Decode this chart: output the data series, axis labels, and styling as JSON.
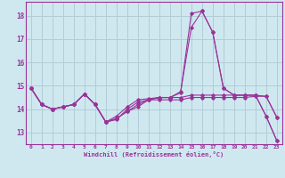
{
  "xlabel": "Windchill (Refroidissement éolien,°C)",
  "background_color": "#cfe8ef",
  "grid_color": "#b0cdd8",
  "line_color": "#993399",
  "xlim": [
    -0.5,
    23.5
  ],
  "ylim": [
    12.5,
    18.6
  ],
  "yticks": [
    13,
    14,
    15,
    16,
    17,
    18
  ],
  "xticks": [
    0,
    1,
    2,
    3,
    4,
    5,
    6,
    7,
    8,
    9,
    10,
    11,
    12,
    13,
    14,
    15,
    16,
    17,
    18,
    19,
    20,
    21,
    22,
    23
  ],
  "series": [
    [
      14.9,
      14.2,
      14.0,
      14.1,
      14.2,
      14.65,
      14.2,
      13.45,
      13.6,
      13.9,
      14.1,
      14.4,
      14.5,
      14.5,
      14.7,
      18.1,
      18.2,
      17.3,
      14.9,
      14.6,
      14.6,
      14.6,
      13.7,
      12.65
    ],
    [
      14.9,
      14.2,
      14.0,
      14.1,
      14.2,
      14.65,
      14.2,
      13.45,
      13.6,
      13.9,
      14.2,
      14.4,
      14.5,
      14.5,
      14.75,
      17.5,
      18.2,
      17.3,
      14.9,
      14.6,
      14.6,
      14.6,
      13.7,
      12.65
    ],
    [
      14.9,
      14.2,
      14.0,
      14.1,
      14.2,
      14.65,
      14.2,
      13.45,
      13.7,
      14.1,
      14.4,
      14.45,
      14.5,
      14.5,
      14.5,
      14.6,
      14.6,
      14.6,
      14.6,
      14.6,
      14.6,
      14.6,
      14.55,
      13.65
    ],
    [
      14.9,
      14.2,
      14.0,
      14.1,
      14.2,
      14.65,
      14.2,
      13.45,
      13.55,
      14.0,
      14.3,
      14.4,
      14.4,
      14.4,
      14.4,
      14.5,
      14.5,
      14.5,
      14.5,
      14.5,
      14.5,
      14.55,
      14.55,
      13.65
    ]
  ]
}
